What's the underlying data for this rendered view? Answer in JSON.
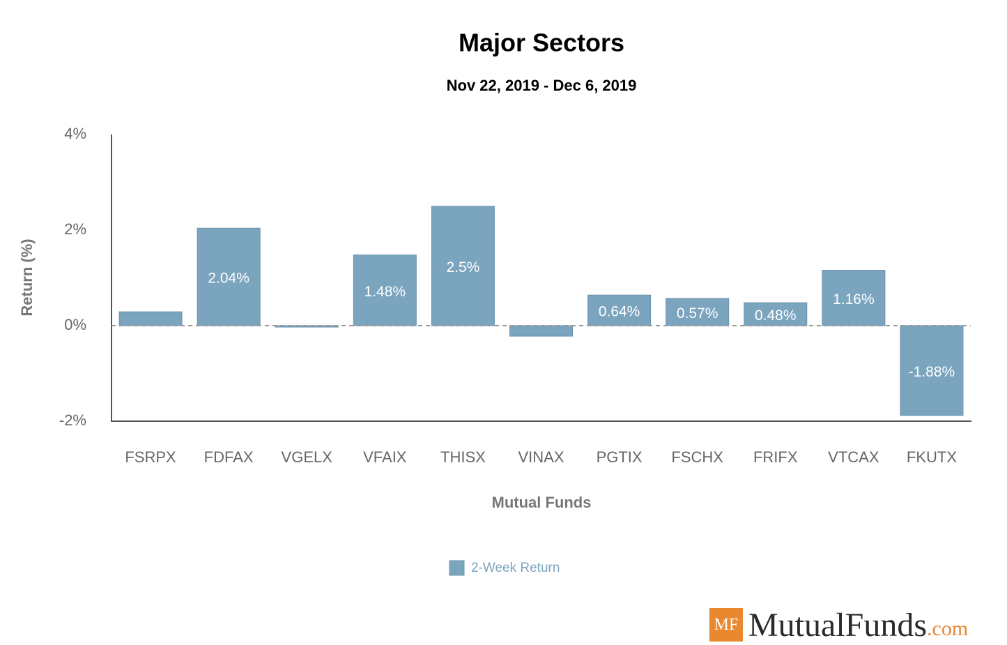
{
  "chart_data": {
    "type": "bar",
    "title": "Major Sectors",
    "subtitle": "Nov 22, 2019 - Dec 6, 2019",
    "x_label": "Mutual Funds",
    "y_label": "Return (%)",
    "categories": [
      "FSRPX",
      "FDFAX",
      "VGELX",
      "VFAIX",
      "THISX",
      "VINAX",
      "PGTIX",
      "FSCHX",
      "FRIFX",
      "VTCAX",
      "FKUTX"
    ],
    "series": [
      {
        "name": "2-Week Return",
        "color": "#7ba4bf",
        "values": [
          0.29,
          2.04,
          -0.03,
          1.48,
          2.5,
          -0.22,
          0.64,
          0.57,
          0.48,
          1.16,
          -1.88
        ],
        "value_labels": [
          null,
          "2.04%",
          null,
          "1.48%",
          "2.5%",
          null,
          "0.64%",
          "0.57%",
          "0.48%",
          "1.16%",
          "-1.88%"
        ]
      }
    ],
    "ylim": [
      -2,
      4
    ],
    "yticks": [
      {
        "value": -2,
        "label": "-2%"
      },
      {
        "value": 0,
        "label": "0%"
      },
      {
        "value": 2,
        "label": "2%"
      },
      {
        "value": 4,
        "label": "4%"
      }
    ],
    "legend": "bottom"
  },
  "logo": {
    "mark": "MF",
    "name": "MutualFunds",
    "suffix": ".com"
  }
}
